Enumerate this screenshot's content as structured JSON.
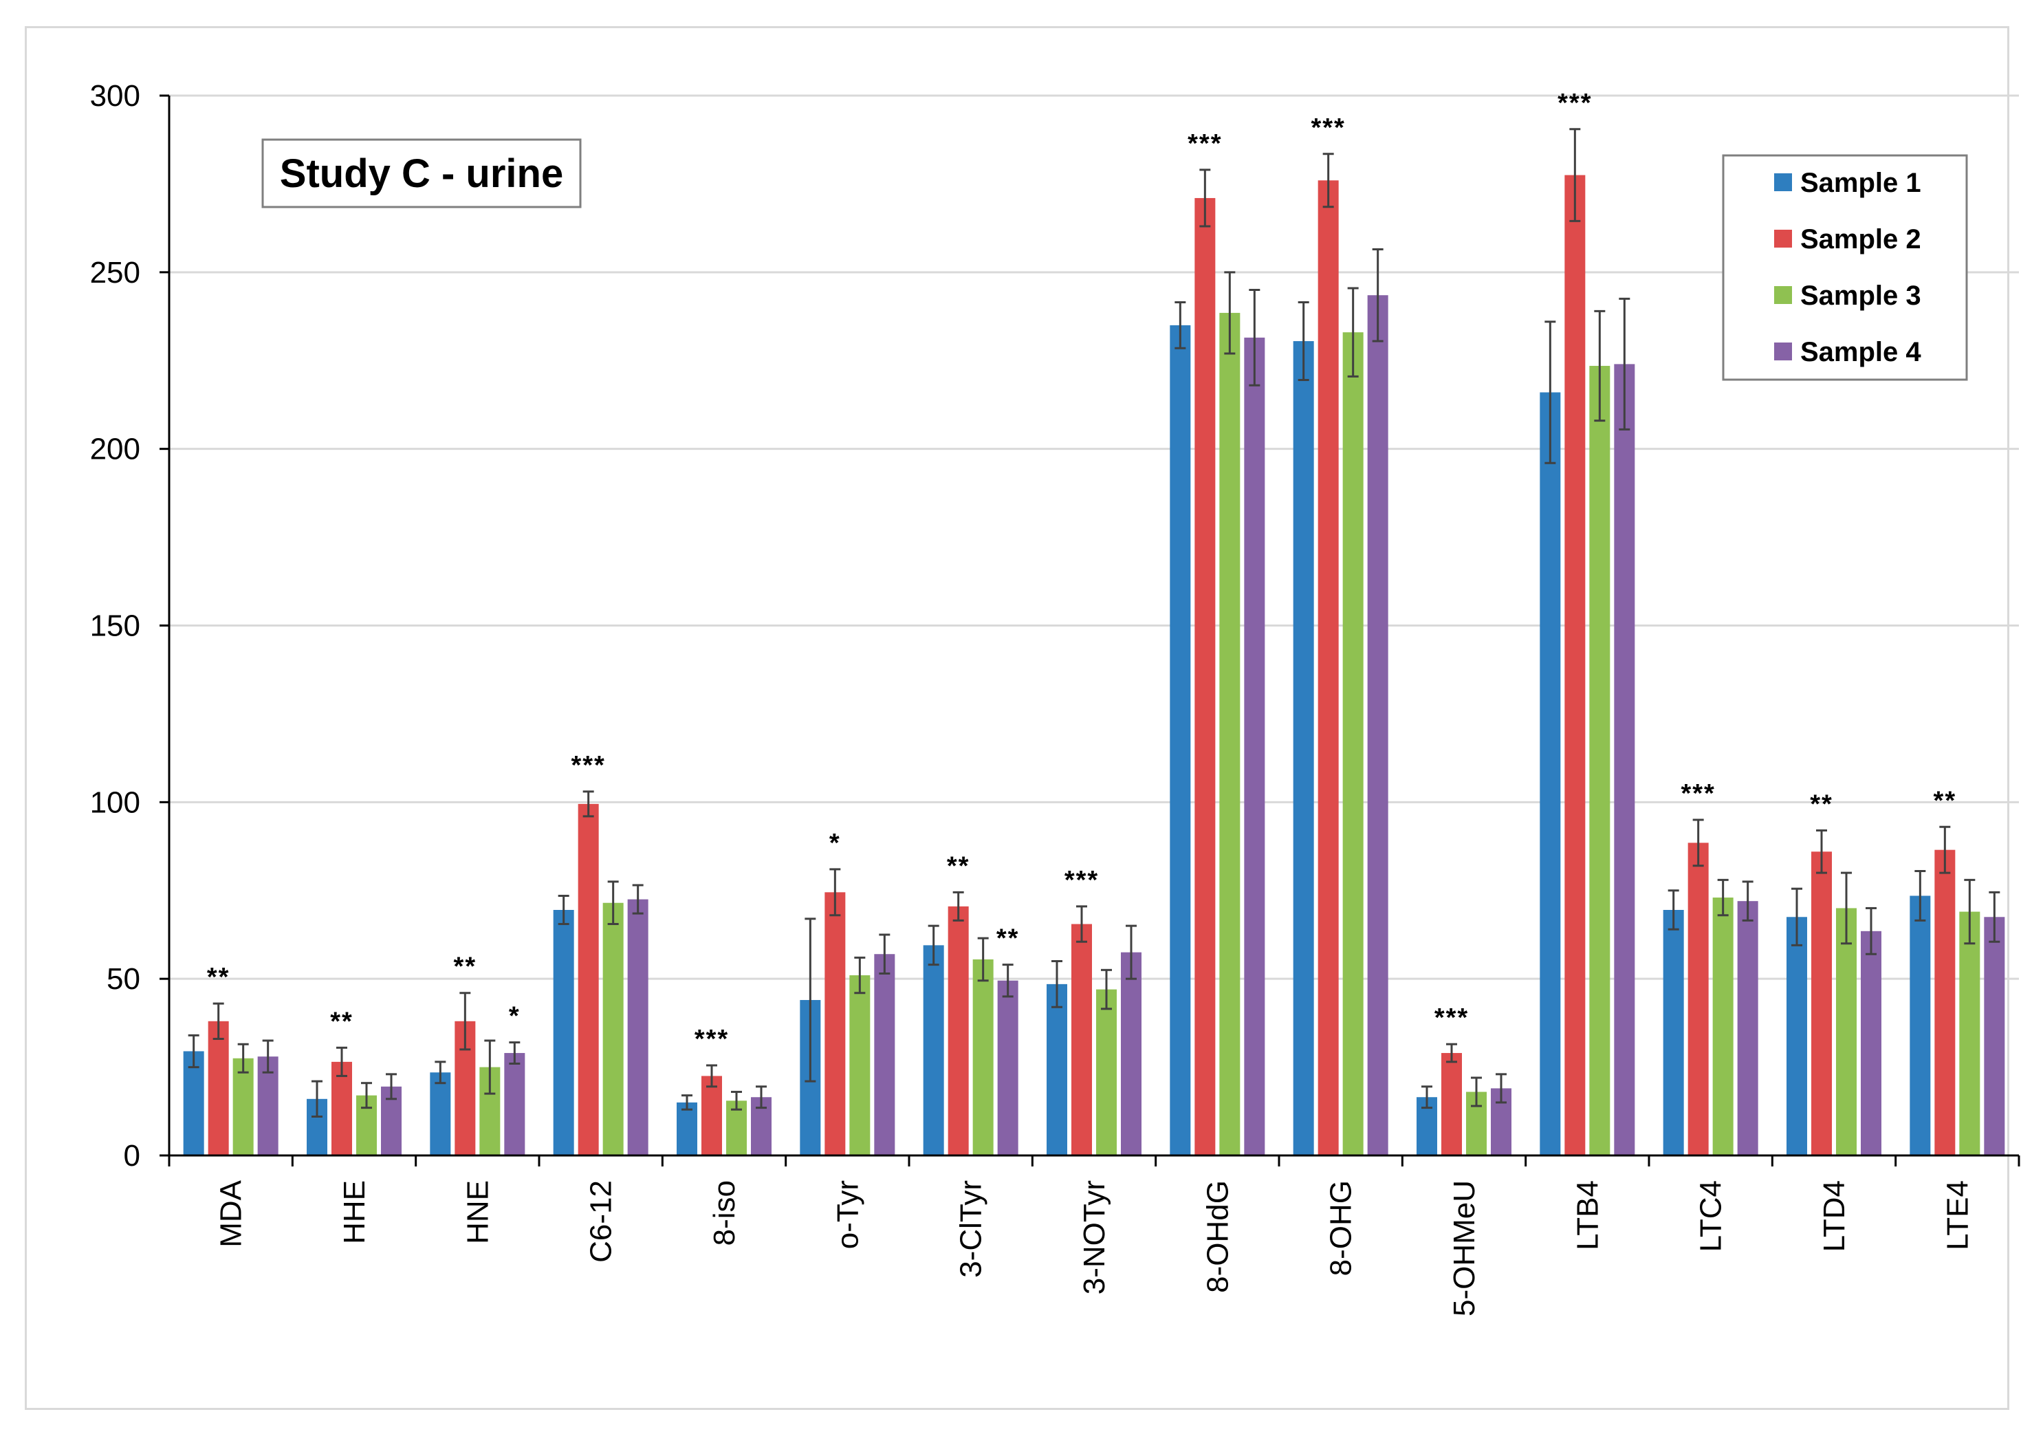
{
  "chart_data": {
    "type": "bar",
    "title": "Study C - urine",
    "xlabel": "",
    "ylabel": "",
    "ylim": [
      0,
      300
    ],
    "yticks": [
      0,
      50,
      100,
      150,
      200,
      250,
      300
    ],
    "grid": true,
    "legend_position": "top-right",
    "categories": [
      "MDA",
      "HHE",
      "HNE",
      "C6-12",
      "8-iso",
      "o-Tyr",
      "3-ClTyr",
      "3-NOTyr",
      "8-OHdG",
      "8-OHG",
      "5-OHMeU",
      "LTB4",
      "LTC4",
      "LTD4",
      "LTE4"
    ],
    "series": [
      {
        "name": "Sample 1",
        "color": "#2e7ebf",
        "values": [
          29.5,
          16,
          23.5,
          69.5,
          15,
          44,
          59.5,
          48.5,
          235,
          230.5,
          16.5,
          216,
          69.5,
          67.5,
          73.5
        ],
        "errors": [
          4.5,
          5,
          3,
          4,
          2,
          23,
          5.5,
          6.5,
          6.5,
          11,
          3,
          20,
          5.5,
          8,
          7
        ]
      },
      {
        "name": "Sample 2",
        "color": "#de4b4b",
        "values": [
          38,
          26.5,
          38,
          99.5,
          22.5,
          74.5,
          70.5,
          65.5,
          271,
          276,
          29,
          277.5,
          88.5,
          86,
          86.5
        ],
        "errors": [
          5,
          4,
          8,
          3.5,
          3,
          6.5,
          4,
          5,
          8,
          7.5,
          2.5,
          13,
          6.5,
          6,
          6.5
        ]
      },
      {
        "name": "Sample 3",
        "color": "#8fc151",
        "values": [
          27.5,
          17,
          25,
          71.5,
          15.5,
          51,
          55.5,
          47,
          238.5,
          233,
          18,
          223.5,
          73,
          70,
          69
        ],
        "errors": [
          4,
          3.5,
          7.5,
          6,
          2.5,
          5,
          6,
          5.5,
          11.5,
          12.5,
          4,
          15.5,
          5,
          10,
          9
        ]
      },
      {
        "name": "Sample 4",
        "color": "#8662a6",
        "values": [
          28,
          19.5,
          29,
          72.5,
          16.5,
          57,
          49.5,
          57.5,
          231.5,
          243.5,
          19,
          224,
          72,
          63.5,
          67.5
        ],
        "errors": [
          4.5,
          3.5,
          3,
          4,
          3,
          5.5,
          4.5,
          7.5,
          13.5,
          13,
          4,
          18.5,
          5.5,
          6.5,
          7
        ]
      }
    ],
    "annotations": [
      {
        "category": "MDA",
        "text": "**",
        "series": "Sample 2"
      },
      {
        "category": "HHE",
        "text": "**",
        "series": "Sample 2"
      },
      {
        "category": "HNE",
        "text": "**",
        "series": "Sample 2"
      },
      {
        "category": "HNE",
        "text": "*",
        "series": "Sample 4"
      },
      {
        "category": "C6-12",
        "text": "***",
        "series": "Sample 2"
      },
      {
        "category": "8-iso",
        "text": "***",
        "series": "Sample 2"
      },
      {
        "category": "o-Tyr",
        "text": "*",
        "series": "Sample 2"
      },
      {
        "category": "3-ClTyr",
        "text": "**",
        "series": "Sample 2"
      },
      {
        "category": "3-ClTyr",
        "text": "**",
        "series": "Sample 4"
      },
      {
        "category": "3-NOTyr",
        "text": "***",
        "series": "Sample 2"
      },
      {
        "category": "8-OHdG",
        "text": "***",
        "series": "Sample 2"
      },
      {
        "category": "8-OHG",
        "text": "***",
        "series": "Sample 2"
      },
      {
        "category": "5-OHMeU",
        "text": "***",
        "series": "Sample 2"
      },
      {
        "category": "LTB4",
        "text": "***",
        "series": "Sample 2"
      },
      {
        "category": "LTC4",
        "text": "***",
        "series": "Sample 2"
      },
      {
        "category": "LTD4",
        "text": "**",
        "series": "Sample 2"
      },
      {
        "category": "LTE4",
        "text": "**",
        "series": "Sample 2"
      }
    ]
  }
}
